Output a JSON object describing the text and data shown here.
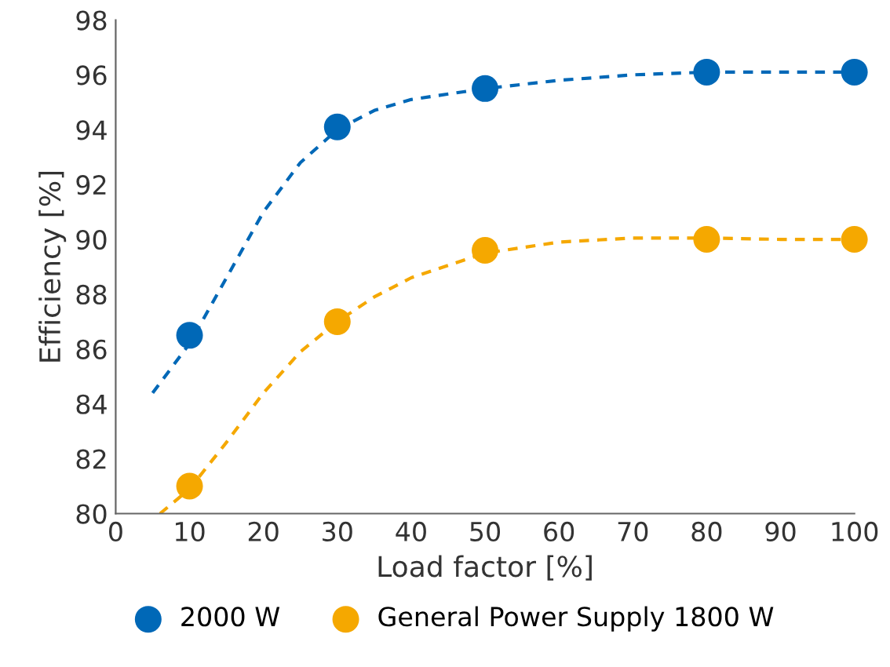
{
  "chart_data": {
    "type": "scatter",
    "xlabel": "Load factor [%]",
    "ylabel": "Efficiency [%]",
    "xlim": [
      0,
      100
    ],
    "xticks": [
      0,
      10,
      20,
      30,
      40,
      50,
      60,
      70,
      80,
      90,
      100
    ],
    "ylim": [
      80,
      98
    ],
    "yticks": [
      80,
      82,
      84,
      86,
      88,
      90,
      92,
      94,
      96,
      98
    ],
    "grid": false,
    "legend": "bottom",
    "marker": "circle",
    "series": [
      {
        "name": "2000 W",
        "color": "#0068b7",
        "x": [
          10,
          30,
          50,
          80,
          100
        ],
        "values": [
          86.5,
          94.1,
          95.5,
          96.1,
          96.1
        ]
      },
      {
        "name": "General Power Supply 1800 W",
        "color": "#f5a800",
        "x": [
          10,
          30,
          50,
          80,
          100
        ],
        "values": [
          81.0,
          87.0,
          89.6,
          90.0,
          90.0
        ]
      },
      {
        "type": "line",
        "line_style": "dashed",
        "marker": "none",
        "color": "#0068b7",
        "x": [
          5,
          10,
          15,
          20,
          25,
          30,
          35,
          40,
          50,
          60,
          70,
          80,
          90,
          100
        ],
        "values": [
          84.4,
          86.2,
          88.6,
          91.0,
          92.8,
          94.0,
          94.7,
          95.1,
          95.5,
          95.8,
          96.0,
          96.1,
          96.1,
          96.1
        ]
      },
      {
        "type": "line",
        "line_style": "dashed",
        "marker": "none",
        "color": "#f5a800",
        "x": [
          6,
          10,
          15,
          20,
          25,
          30,
          35,
          40,
          50,
          60,
          70,
          80,
          90,
          100
        ],
        "values": [
          80.0,
          80.9,
          82.6,
          84.4,
          85.9,
          87.0,
          87.9,
          88.6,
          89.5,
          89.9,
          90.05,
          90.05,
          90.0,
          90.0
        ]
      }
    ]
  }
}
